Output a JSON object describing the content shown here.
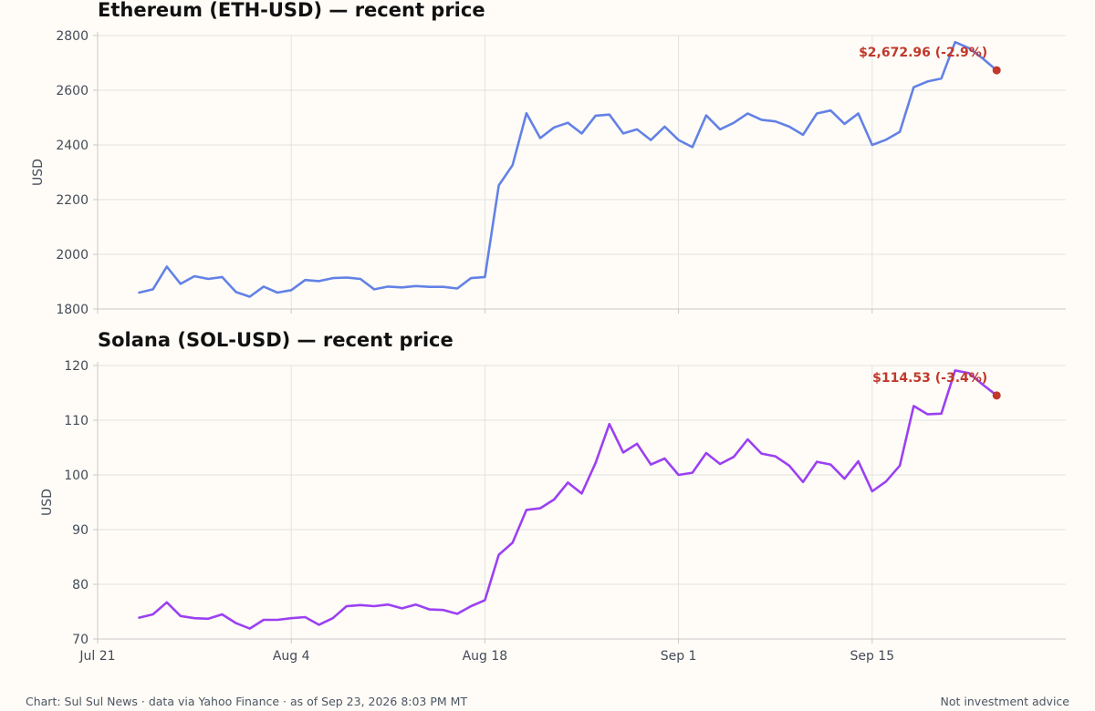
{
  "footer": {
    "source": "Chart: Sul Sul News · data via Yahoo Finance · as of Sep 23, 2026 8:03 PM MT",
    "disclaimer": "Not investment advice"
  },
  "colors": {
    "background": "#fffcf7",
    "eth_line": "#6381e6",
    "sol_line": "#9b40f2",
    "last_point": "#c0392b"
  },
  "chart_data": [
    {
      "type": "line",
      "title": "Ethereum (ETH-USD) — recent price",
      "ylabel": "USD",
      "xlabel": "",
      "ylim": [
        1800,
        2800
      ],
      "yticks": [
        1800,
        2000,
        2200,
        2400,
        2600,
        2800
      ],
      "x_range": [
        "2026-07-21",
        "2026-09-29"
      ],
      "xticks": [
        {
          "date": "2026-07-21",
          "label": "Jul 21"
        },
        {
          "date": "2026-08-04",
          "label": "Aug 4"
        },
        {
          "date": "2026-08-18",
          "label": "Aug 18"
        },
        {
          "date": "2026-09-01",
          "label": "Sep 1"
        },
        {
          "date": "2026-09-15",
          "label": "Sep 15"
        }
      ],
      "grid": true,
      "series": [
        {
          "start_date": "2026-07-24",
          "values": [
            1860,
            1872,
            1955,
            1892,
            1920,
            1910,
            1917,
            1862,
            1845,
            1882,
            1860,
            1869,
            1906,
            1902,
            1913,
            1915,
            1910,
            1872,
            1882,
            1879,
            1884,
            1881,
            1881,
            1875,
            1913,
            1917,
            2252,
            2326,
            2516,
            2425,
            2464,
            2481,
            2442,
            2507,
            2511,
            2442,
            2457,
            2418,
            2467,
            2418,
            2392,
            2508,
            2457,
            2481,
            2515,
            2492,
            2486,
            2467,
            2437,
            2515,
            2526,
            2477,
            2515,
            2400,
            2419,
            2448,
            2611,
            2632,
            2643,
            2776,
            2754,
            2716,
            2672.96
          ]
        }
      ],
      "annotation": {
        "text": "$2,672.96 (-2.9%)",
        "value": 2672.96
      }
    },
    {
      "type": "line",
      "title": "Solana (SOL-USD) — recent price",
      "ylabel": "USD",
      "xlabel": "",
      "ylim": [
        70,
        120
      ],
      "yticks": [
        70,
        80,
        90,
        100,
        110,
        120
      ],
      "x_range": [
        "2026-07-21",
        "2026-09-29"
      ],
      "xticks": [
        {
          "date": "2026-07-21",
          "label": "Jul 21"
        },
        {
          "date": "2026-08-04",
          "label": "Aug 4"
        },
        {
          "date": "2026-08-18",
          "label": "Aug 18"
        },
        {
          "date": "2026-09-01",
          "label": "Sep 1"
        },
        {
          "date": "2026-09-15",
          "label": "Sep 15"
        }
      ],
      "grid": true,
      "series": [
        {
          "start_date": "2026-07-24",
          "values": [
            73.9,
            74.5,
            76.7,
            74.2,
            73.8,
            73.7,
            74.5,
            72.9,
            71.9,
            73.5,
            73.5,
            73.8,
            74.0,
            72.6,
            73.8,
            76.0,
            76.2,
            76.0,
            76.3,
            75.6,
            76.3,
            75.4,
            75.3,
            74.6,
            76.0,
            77.1,
            85.4,
            87.6,
            93.6,
            93.9,
            95.5,
            98.6,
            96.6,
            102.2,
            109.3,
            104.1,
            105.7,
            101.9,
            103.0,
            100.0,
            100.4,
            104.0,
            102.0,
            103.3,
            106.5,
            103.9,
            103.4,
            101.7,
            98.7,
            102.4,
            101.9,
            99.3,
            102.5,
            97.0,
            98.8,
            101.7,
            112.6,
            111.1,
            111.2,
            119.1,
            118.6,
            116.5,
            114.53
          ]
        }
      ],
      "annotation": {
        "text": "$114.53 (-3.4%)",
        "value": 114.53
      }
    }
  ]
}
